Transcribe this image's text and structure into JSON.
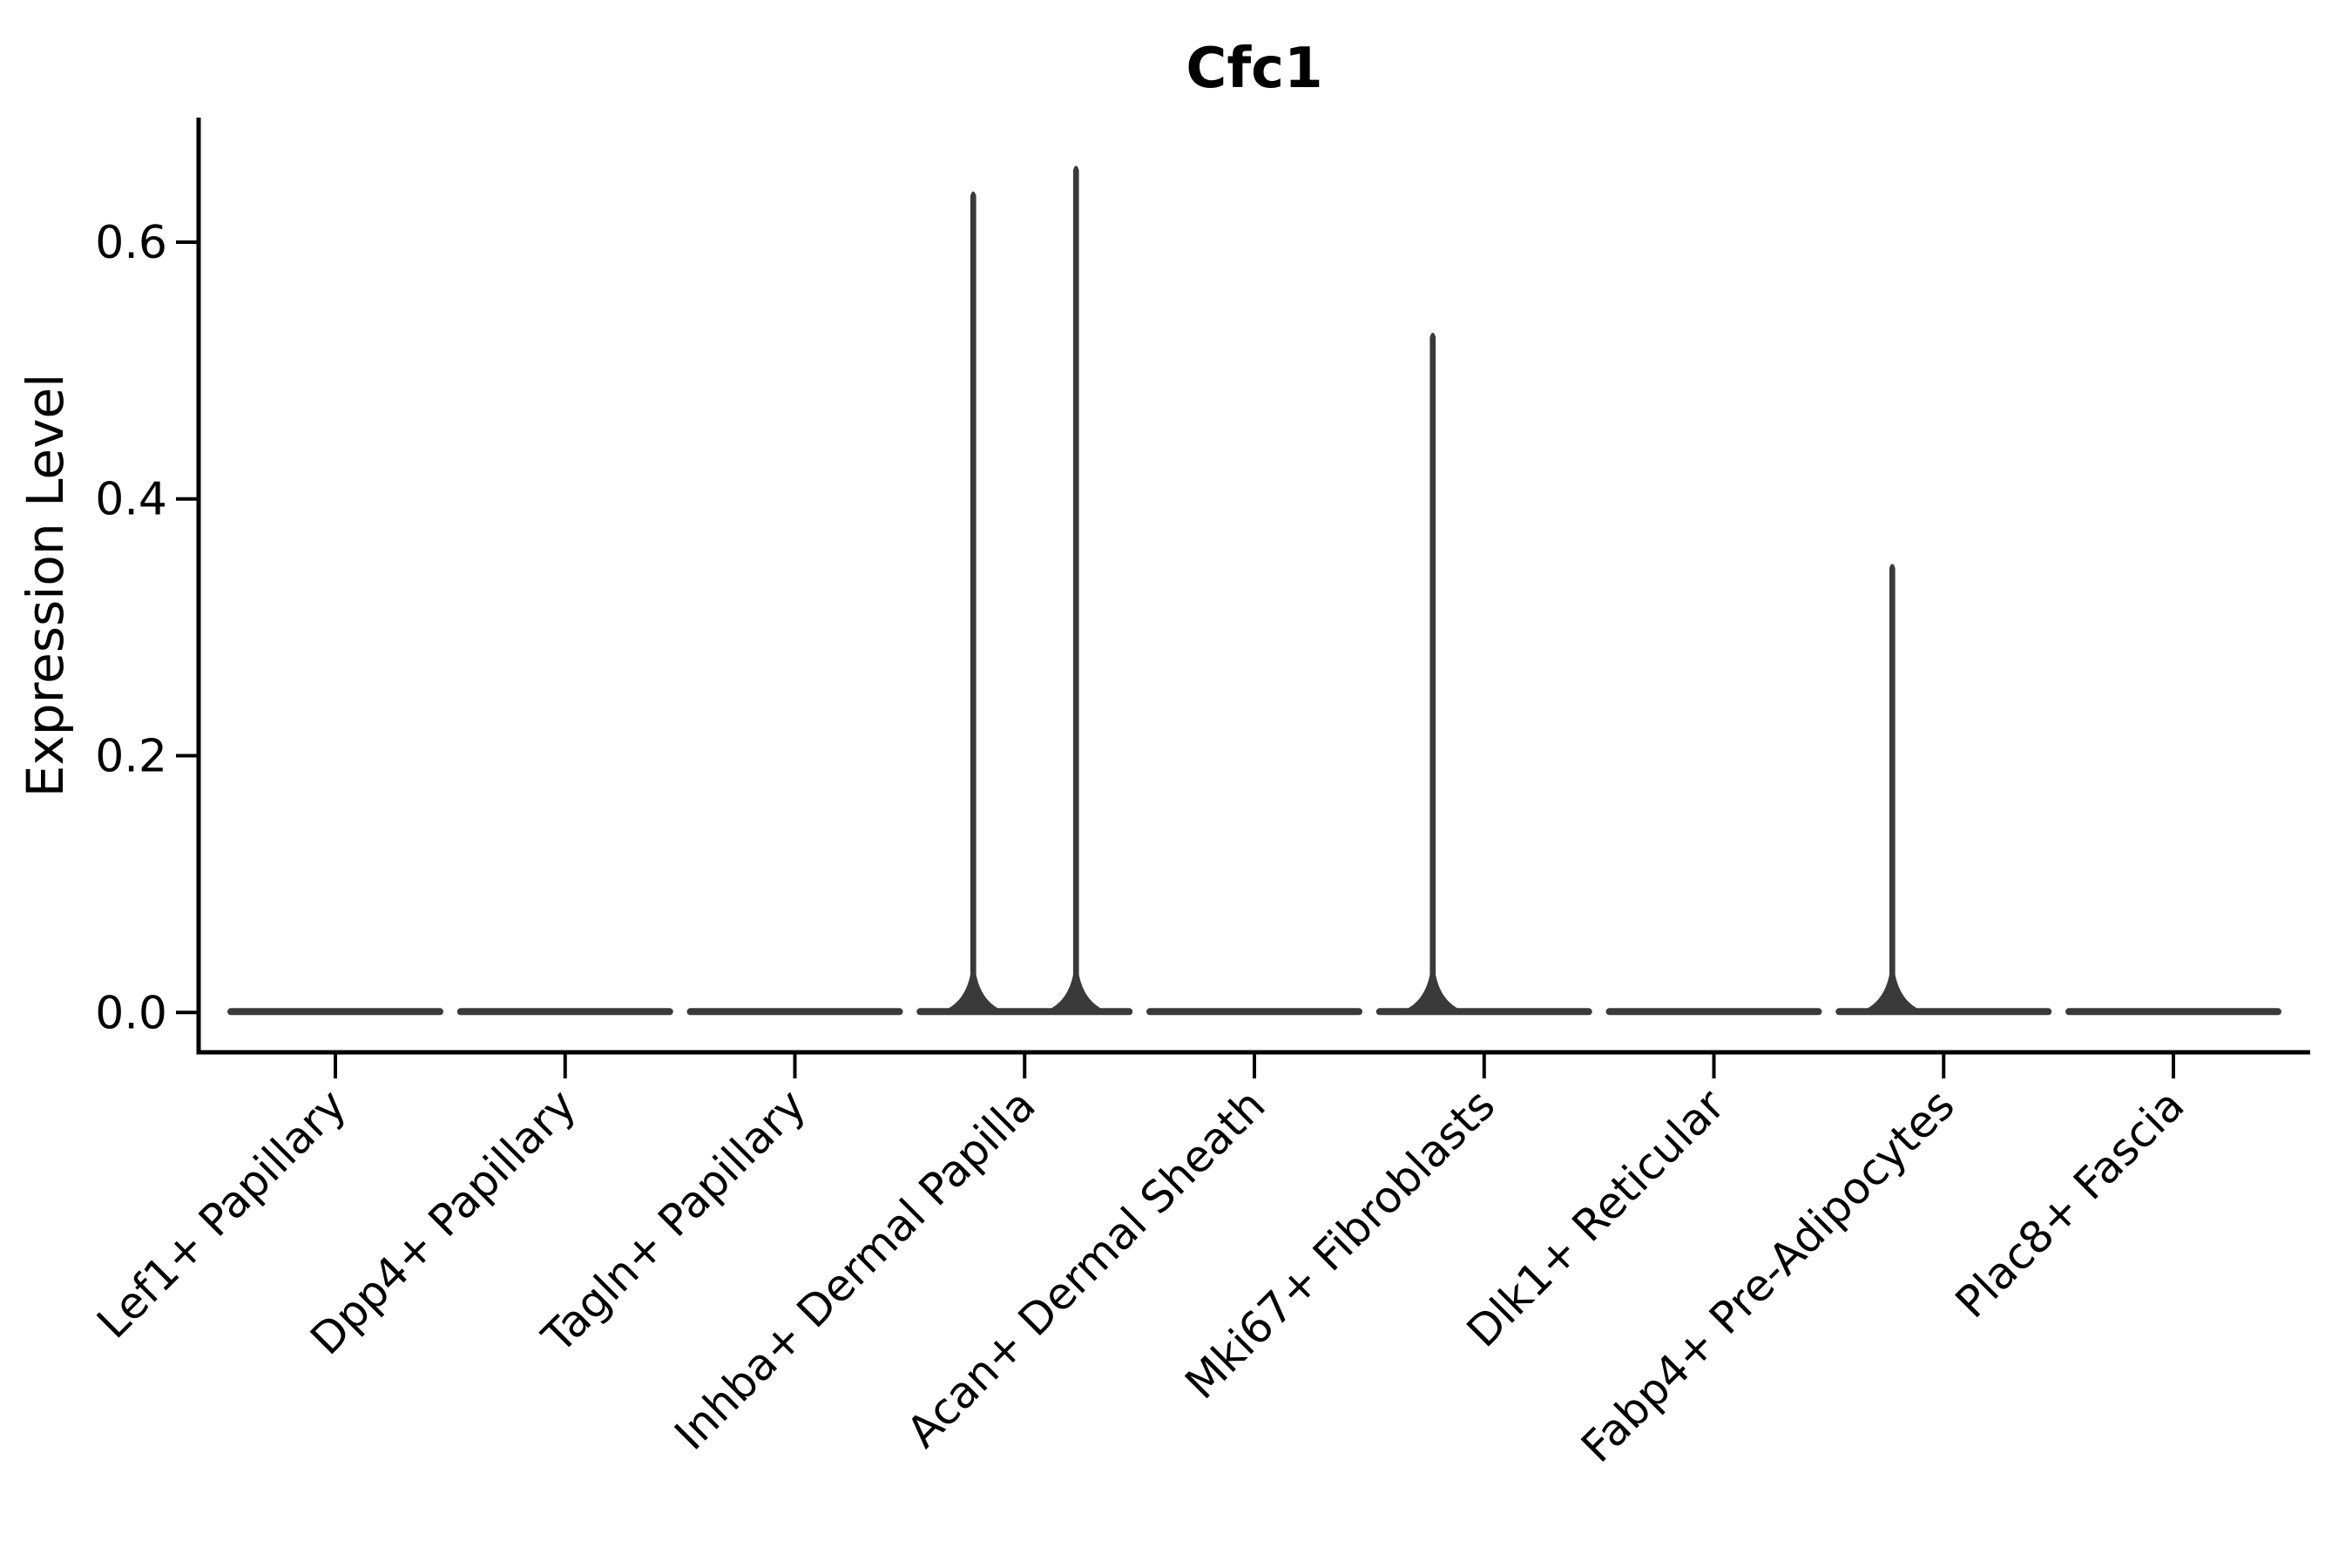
{
  "title": "Cfc1",
  "chart_data": {
    "type": "violin",
    "title": "Cfc1",
    "xlabel": "",
    "ylabel": "Expression Level",
    "categories": [
      "Lef1+ Papillary",
      "Dpp4+ Papillary",
      "Tagln+ Papillary",
      "Inhba+ Dermal Papilla",
      "Acan+ Dermal Sheath",
      "Mki67+ Fibroblasts",
      "Dlk1+ Reticular",
      "Fabp4+ Pre-Adipocytes",
      "Plac8+ Fascia"
    ],
    "y_ticks": [
      "0.0",
      "0.2",
      "0.4",
      "0.6"
    ],
    "ylim": [
      -0.031,
      0.697
    ],
    "grid": false,
    "legend": "none",
    "violins": [
      {
        "category": "Lef1+ Papillary",
        "baseline_value": 0.0,
        "spikes": []
      },
      {
        "category": "Dpp4+ Papillary",
        "baseline_value": 0.0,
        "spikes": []
      },
      {
        "category": "Tagln+ Papillary",
        "baseline_value": 0.0,
        "spikes": []
      },
      {
        "category": "Inhba+ Dermal Papilla",
        "baseline_value": 0.0,
        "spikes": [
          {
            "side": "left",
            "max": 0.64
          },
          {
            "side": "right",
            "max": 0.66
          }
        ]
      },
      {
        "category": "Acan+ Dermal Sheath",
        "baseline_value": 0.0,
        "spikes": []
      },
      {
        "category": "Mki67+ Fibroblasts",
        "baseline_value": 0.0,
        "spikes": [
          {
            "side": "left",
            "max": 0.53
          }
        ]
      },
      {
        "category": "Dlk1+ Reticular",
        "baseline_value": 0.0,
        "spikes": []
      },
      {
        "category": "Fabp4+ Pre-Adipocytes",
        "baseline_value": 0.0,
        "spikes": [
          {
            "side": "left",
            "max": 0.35
          }
        ]
      },
      {
        "category": "Plac8+ Fascia",
        "baseline_value": 0.0,
        "spikes": []
      }
    ],
    "colors": {
      "violin": "#3a3a3a",
      "axis": "#000000",
      "text": "#000000",
      "background": "#ffffff"
    }
  }
}
